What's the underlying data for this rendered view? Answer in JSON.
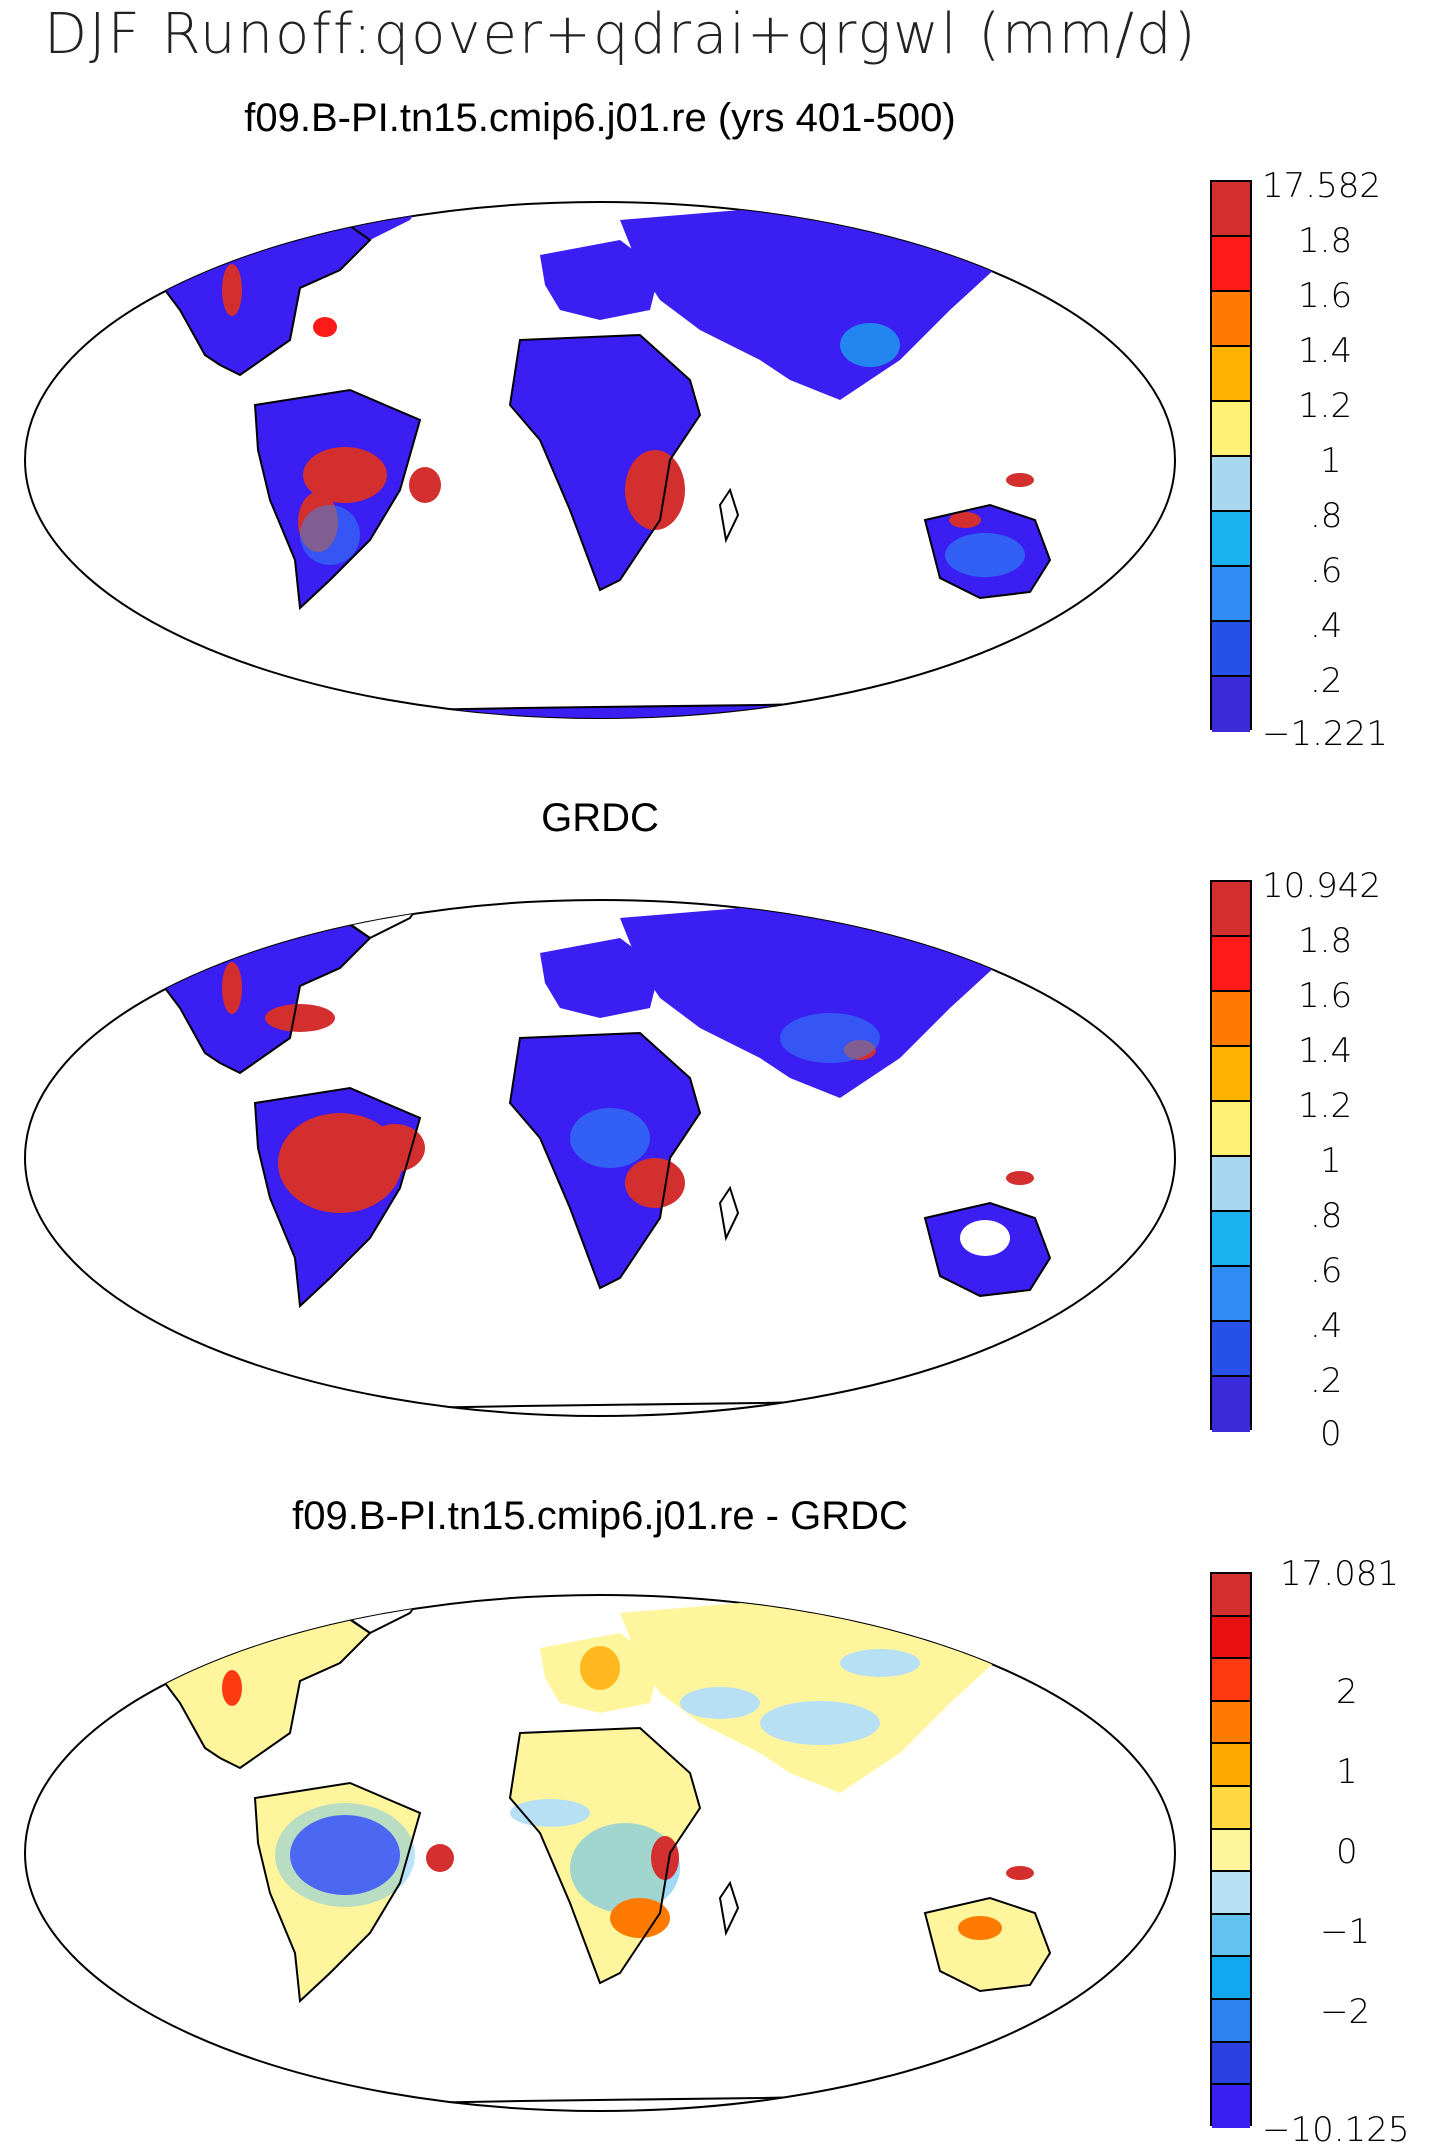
{
  "figure": {
    "main_title": "DJF Runoff:qover+qdrai+qrgwl (mm/d)"
  },
  "panels": [
    {
      "title": "f09.B-PI.tn15.cmip6.j01.re (yrs 401-500)",
      "colorbar_labels": [
        "17.582",
        "1.8",
        "1.6",
        "1.4",
        "1.2",
        "1",
        ".8",
        ".6",
        ".4",
        ".2",
        "−1.221"
      ],
      "colorbar_colors": [
        "#d32f2f",
        "#ff1a1a",
        "#ff7a00",
        "#ffb300",
        "#fff176",
        "#a8d8f0",
        "#1ab2f0",
        "#2f8cf5",
        "#2650e8",
        "#3a2ad8"
      ],
      "fill_color": "#3a1ef2"
    },
    {
      "title": "GRDC",
      "colorbar_labels": [
        "10.942",
        "1.8",
        "1.6",
        "1.4",
        "1.2",
        "1",
        ".8",
        ".6",
        ".4",
        ".2",
        "0"
      ],
      "colorbar_colors": [
        "#d32f2f",
        "#ff1a1a",
        "#ff7a00",
        "#ffb300",
        "#fff176",
        "#a8d8f0",
        "#1ab2f0",
        "#2f8cf5",
        "#2650e8",
        "#3a2ad8"
      ],
      "fill_color": "#3a1ef2"
    },
    {
      "title": "f09.B-PI.tn15.cmip6.j01.re - GRDC",
      "colorbar_labels": [
        "17.081",
        "",
        "2",
        "",
        "1",
        "",
        "0",
        "",
        "−1",
        "",
        "−2",
        "",
        "−10.125"
      ],
      "colorbar_colors": [
        "#d32f2f",
        "#e81010",
        "#ff3a10",
        "#ff7a00",
        "#ffaa00",
        "#ffd740",
        "#fff59d",
        "#b8e0f5",
        "#63c2f0",
        "#12a8ef",
        "#2f80f0",
        "#2a40e0",
        "#3a1ef2"
      ],
      "fill_color": "#fff59d"
    }
  ]
}
